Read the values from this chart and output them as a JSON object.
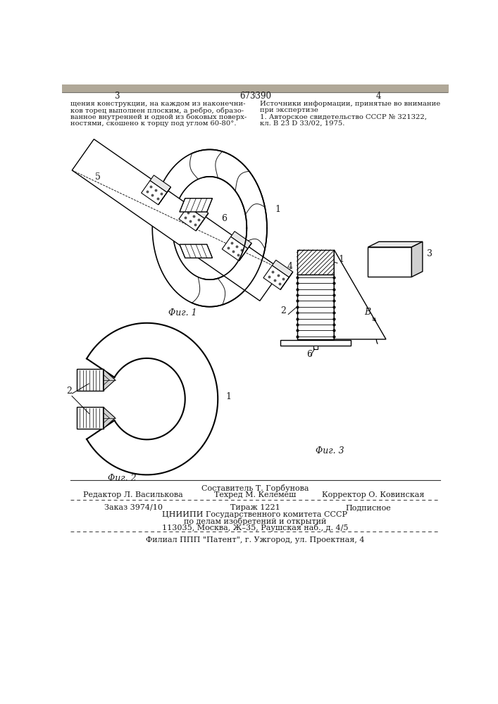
{
  "patent_number": "673390",
  "page_left": "3",
  "page_right": "4",
  "top_text_left": [
    "щения конструкции, на каждом из наконечни-",
    "ков торец выполнен плоским, а ребро, образо-",
    "ванное внутренней и одной из боковых поверх-",
    "ностями, скошено к торцу под углом 60-80°."
  ],
  "top_text_right": [
    "Источники информации, принятые во внимание",
    "при экспертизе",
    "1. Авторское свидетельство СССР № 321322,",
    "кл. B 23 D 33/02, 1975."
  ],
  "fig1_caption": "Φиг. 1",
  "fig2_caption": "Φиг. 2",
  "fig3_caption": "Φиг. 3",
  "bottom_texts": [
    "Составитель Т. Горбунова",
    "Редактор Л. Василькова",
    "Техред М. Келемеш",
    "Корректор О. Ковинская",
    "Заказ 3974/10",
    "Тираж 1221",
    "Подписное",
    "ЦНИИПИ Государственного комитета СССР",
    "по делам изобретений и открытий",
    "113035, Москва, Ж–35, Раушская наб., д. 4/5",
    "Филиал ППП \"Патент\", г. Ужгород, ул. Проектная, 4"
  ],
  "bg_color": "#ffffff",
  "text_color": "#1a1a1a",
  "line_color": "#000000"
}
